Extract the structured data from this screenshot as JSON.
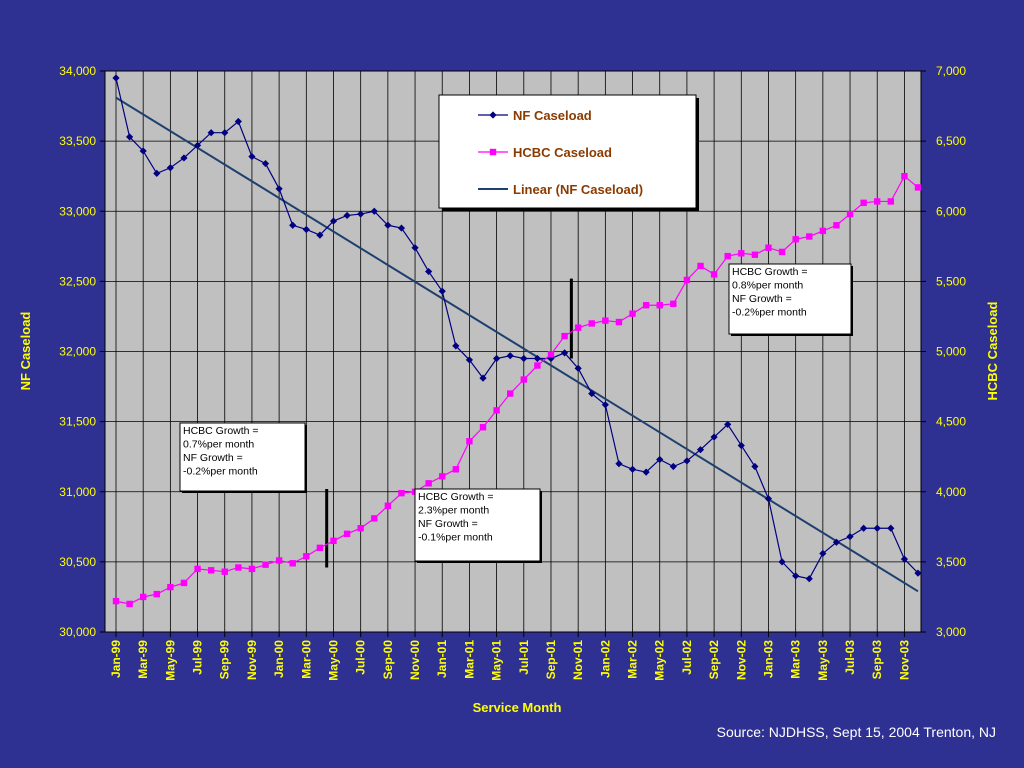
{
  "source_note": "Source: NJDHSS, Sept 15, 2004  Trenton, NJ",
  "chart_data": {
    "type": "line",
    "xlabel": "Service Month",
    "ylabel_left": "NF Caseload",
    "ylabel_right": "HCBC Caseload",
    "ylim_left": [
      30000,
      34000
    ],
    "ylim_right": [
      3000,
      7000
    ],
    "yticks_left": [
      "30,000",
      "30,500",
      "31,000",
      "31,500",
      "32,000",
      "32,500",
      "33,000",
      "33,500",
      "34,000"
    ],
    "yticks_right": [
      "3,000",
      "3,500",
      "4,000",
      "4,500",
      "5,000",
      "5,500",
      "6,000",
      "6,500",
      "7,000"
    ],
    "grid": true,
    "legend_position": "top-center",
    "colors": {
      "background": "#2E3192",
      "plot_area": "#C0C0C0",
      "axis_text": "#FFFF00",
      "nf": "#000080",
      "hcbc": "#FF00FF",
      "trend": "#1F3F6F"
    },
    "categories": [
      "Jan-99",
      "Feb-99",
      "Mar-99",
      "Apr-99",
      "May-99",
      "Jun-99",
      "Jul-99",
      "Aug-99",
      "Sep-99",
      "Oct-99",
      "Nov-99",
      "Dec-99",
      "Jan-00",
      "Feb-00",
      "Mar-00",
      "Apr-00",
      "May-00",
      "Jun-00",
      "Jul-00",
      "Aug-00",
      "Sep-00",
      "Oct-00",
      "Nov-00",
      "Dec-00",
      "Jan-01",
      "Feb-01",
      "Mar-01",
      "Apr-01",
      "May-01",
      "Jun-01",
      "Jul-01",
      "Aug-01",
      "Sep-01",
      "Oct-01",
      "Nov-01",
      "Dec-01",
      "Jan-02",
      "Feb-02",
      "Mar-02",
      "Apr-02",
      "May-02",
      "Jun-02",
      "Jul-02",
      "Aug-02",
      "Sep-02",
      "Oct-02",
      "Nov-02",
      "Dec-02",
      "Jan-03",
      "Feb-03",
      "Mar-03",
      "Apr-03",
      "May-03",
      "Jun-03",
      "Jul-03",
      "Aug-03",
      "Sep-03",
      "Oct-03",
      "Nov-03",
      "Dec-03"
    ],
    "tick_labels": [
      "Jan-99",
      "Mar-99",
      "May-99",
      "Jul-99",
      "Sep-99",
      "Nov-99",
      "Jan-00",
      "Mar-00",
      "May-00",
      "Jul-00",
      "Sep-00",
      "Nov-00",
      "Jan-01",
      "Mar-01",
      "May-01",
      "Jul-01",
      "Sep-01",
      "Nov-01",
      "Jan-02",
      "Mar-02",
      "May-02",
      "Jul-02",
      "Sep-02",
      "Nov-02",
      "Jan-03",
      "Mar-03",
      "May-03",
      "Jul-03",
      "Sep-03",
      "Nov-03"
    ],
    "series": [
      {
        "name": "NF Caseload",
        "axis": "left",
        "marker": "diamond",
        "values": [
          33950,
          33530,
          33430,
          33270,
          33310,
          33380,
          33470,
          33560,
          33560,
          33640,
          33390,
          33340,
          33160,
          32900,
          32870,
          32830,
          32930,
          32970,
          32980,
          33000,
          32900,
          32880,
          32740,
          32570,
          32430,
          32040,
          31940,
          31810,
          31950,
          31970,
          31950,
          31950,
          31950,
          31990,
          31880,
          31700,
          31620,
          31200,
          31160,
          31140,
          31230,
          31180,
          31220,
          31300,
          31390,
          31480,
          31330,
          31180,
          30950,
          30500,
          30400,
          30380,
          30560,
          30640,
          30680,
          30740,
          30740,
          30740,
          30520,
          30420
        ]
      },
      {
        "name": "HCBC Caseload",
        "axis": "right",
        "marker": "square",
        "values": [
          3220,
          3200,
          3250,
          3270,
          3320,
          3350,
          3450,
          3440,
          3430,
          3460,
          3450,
          3480,
          3510,
          3490,
          3540,
          3600,
          3650,
          3700,
          3740,
          3810,
          3900,
          3990,
          4000,
          4060,
          4110,
          4160,
          4360,
          4460,
          4580,
          4700,
          4800,
          4900,
          4980,
          5110,
          5170,
          5200,
          5220,
          5210,
          5270,
          5330,
          5330,
          5340,
          5510,
          5610,
          5550,
          5680,
          5700,
          5690,
          5740,
          5710,
          5800,
          5820,
          5860,
          5900,
          5980,
          6060,
          6070,
          6070,
          6250,
          6170
        ]
      },
      {
        "name": "Linear (NF Caseload)",
        "axis": "left",
        "type": "trendline",
        "values_start_end": [
          33810,
          30290
        ]
      }
    ],
    "annotations": [
      {
        "id": "ann1",
        "lines": [
          "HCBC Growth =",
          "0.7%per month",
          "NF Growth =",
          "-0.2%per month"
        ]
      },
      {
        "id": "ann2",
        "lines": [
          "HCBC Growth =",
          "2.3%per month",
          "NF Growth =",
          "-0.1%per month"
        ]
      },
      {
        "id": "ann3",
        "lines": [
          "HCBC Growth =",
          "0.8%per month",
          "NF Growth =",
          "-0.2%per month"
        ]
      }
    ],
    "period_dividers": [
      "Apr-00",
      "Oct-01"
    ]
  }
}
